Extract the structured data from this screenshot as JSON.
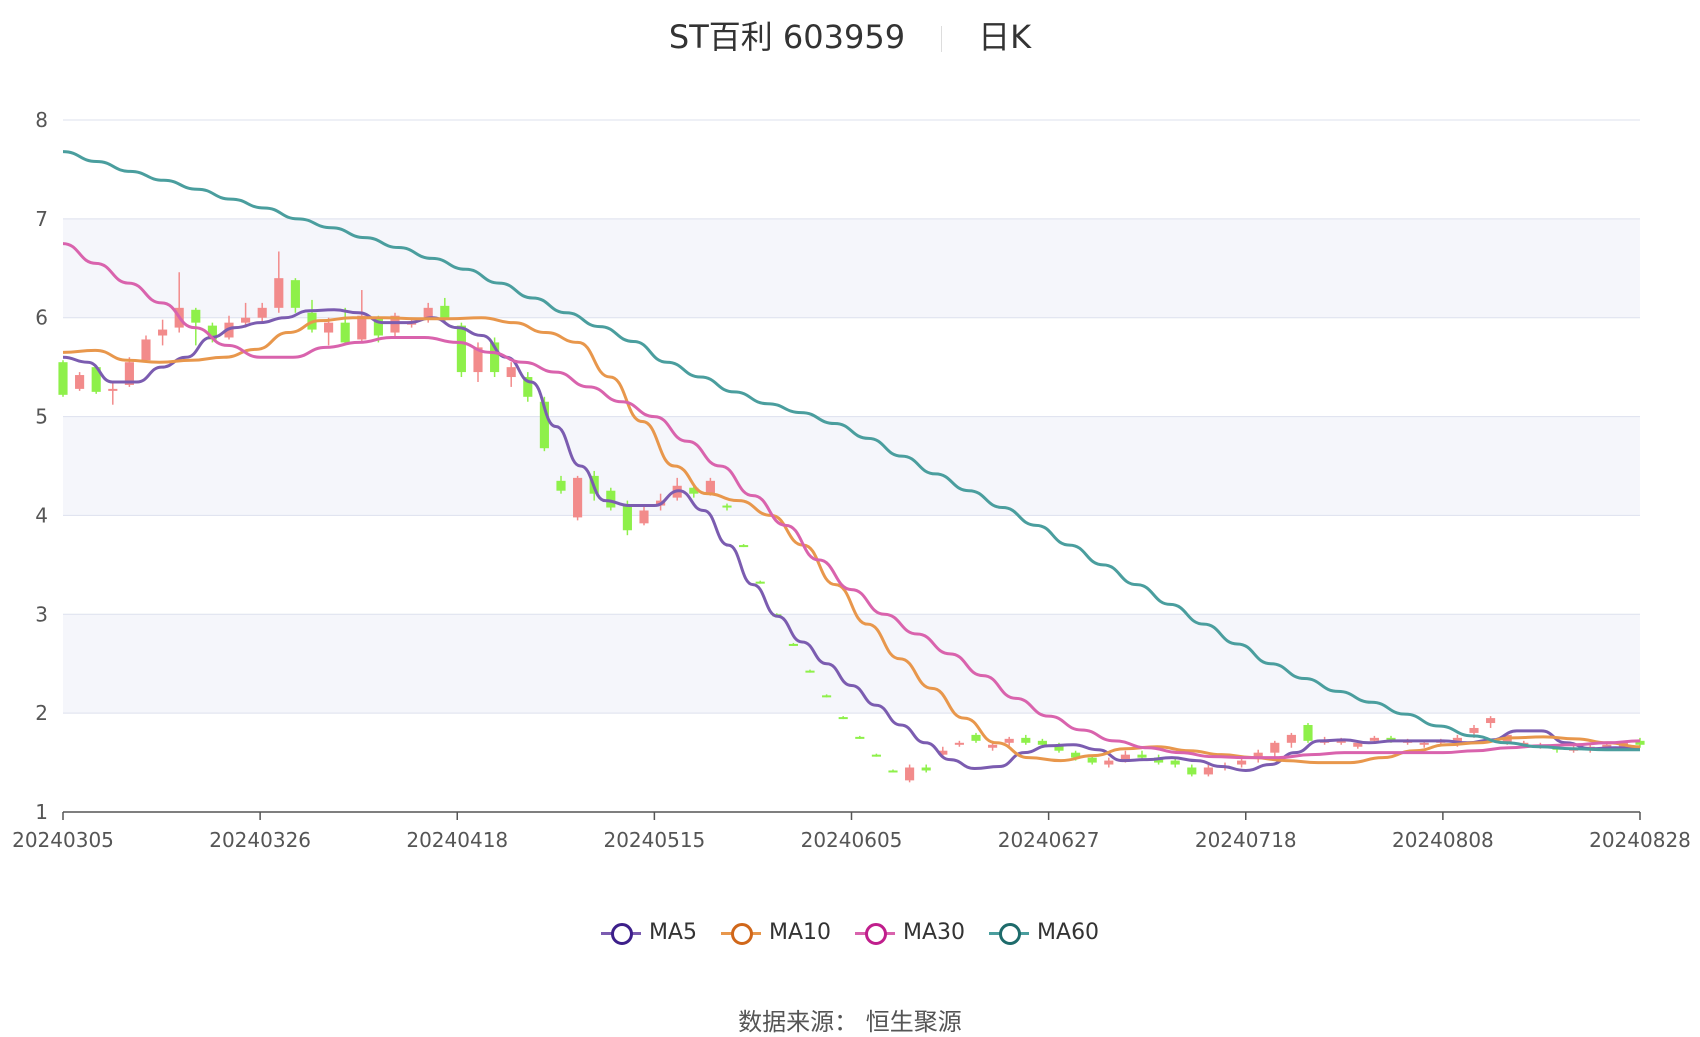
{
  "chart_data": {
    "type": "candlestick",
    "title": "ST百利 603959",
    "period_label": "日K",
    "ylim": [
      1,
      8
    ],
    "yticks": [
      "1",
      "2",
      "3",
      "4",
      "5",
      "6",
      "7",
      "8"
    ],
    "xticks": [
      "20240305",
      "20240326",
      "20240418",
      "20240515",
      "20240605",
      "20240627",
      "20240718",
      "20240808",
      "20240828"
    ],
    "grid": true,
    "legend_position": "bottom",
    "colors": {
      "up": "#f28b8b",
      "down": "#8ef04a",
      "band": "#f5f6fb",
      "grid": "#dde1ee"
    },
    "series": [
      {
        "name": "MA5",
        "color": "#7b5cb0",
        "marker_color": "#3d1f8a",
        "values": [
          5.6,
          5.55,
          5.35,
          5.35,
          5.5,
          5.6,
          5.8,
          5.9,
          5.95,
          6.0,
          6.07,
          6.08,
          6.05,
          5.95,
          5.95,
          6.0,
          5.9,
          5.82,
          5.6,
          5.35,
          4.9,
          4.5,
          4.15,
          4.1,
          4.1,
          4.25,
          4.05,
          3.7,
          3.3,
          2.98,
          2.72,
          2.5,
          2.28,
          2.08,
          1.88,
          1.7,
          1.53,
          1.44,
          1.46,
          1.6,
          1.67,
          1.68,
          1.63,
          1.52,
          1.53,
          1.55,
          1.52,
          1.46,
          1.42,
          1.48,
          1.6,
          1.72,
          1.73,
          1.7,
          1.72,
          1.72,
          1.72,
          1.7,
          1.73,
          1.82,
          1.82,
          1.7,
          1.64,
          1.65,
          1.64
        ]
      },
      {
        "name": "MA10",
        "color": "#e8974c",
        "marker_color": "#d0671a",
        "values": [
          5.65,
          5.67,
          5.57,
          5.55,
          5.57,
          5.6,
          5.68,
          5.85,
          5.97,
          6.0,
          6.0,
          5.99,
          5.99,
          6.0,
          5.95,
          5.85,
          5.75,
          5.4,
          4.95,
          4.5,
          4.22,
          4.15,
          4.0,
          3.7,
          3.3,
          2.9,
          2.55,
          2.25,
          1.95,
          1.7,
          1.55,
          1.52,
          1.57,
          1.64,
          1.66,
          1.62,
          1.58,
          1.55,
          1.52,
          1.5,
          1.5,
          1.55,
          1.62,
          1.68,
          1.7,
          1.75,
          1.76,
          1.74,
          1.7,
          1.66
        ]
      },
      {
        "name": "MA30",
        "color": "#d963ad",
        "marker_color": "#c01e8c",
        "values": [
          6.75,
          6.55,
          6.35,
          6.15,
          5.9,
          5.72,
          5.6,
          5.6,
          5.7,
          5.75,
          5.8,
          5.8,
          5.75,
          5.65,
          5.55,
          5.45,
          5.3,
          5.15,
          5.0,
          4.75,
          4.5,
          4.2,
          3.9,
          3.55,
          3.25,
          3.0,
          2.8,
          2.6,
          2.38,
          2.15,
          1.97,
          1.83,
          1.72,
          1.65,
          1.6,
          1.56,
          1.55,
          1.55,
          1.58,
          1.6,
          1.6,
          1.6,
          1.6,
          1.62,
          1.65,
          1.67,
          1.68,
          1.7,
          1.72
        ]
      },
      {
        "name": "MA60",
        "color": "#4a9e9e",
        "marker_color": "#1e6b6b",
        "values": [
          7.68,
          7.58,
          7.48,
          7.39,
          7.3,
          7.2,
          7.11,
          7.0,
          6.91,
          6.81,
          6.71,
          6.6,
          6.49,
          6.35,
          6.2,
          6.05,
          5.91,
          5.76,
          5.55,
          5.4,
          5.25,
          5.13,
          5.04,
          4.93,
          4.78,
          4.6,
          4.42,
          4.25,
          4.08,
          3.9,
          3.7,
          3.5,
          3.3,
          3.1,
          2.9,
          2.7,
          2.5,
          2.35,
          2.22,
          2.11,
          1.99,
          1.87,
          1.77,
          1.7,
          1.66,
          1.64,
          1.63,
          1.63
        ]
      }
    ],
    "candles": [
      [
        5.55,
        5.22,
        5.57,
        5.2
      ],
      [
        5.28,
        5.42,
        5.45,
        5.26
      ],
      [
        5.5,
        5.25,
        5.52,
        5.23
      ],
      [
        5.26,
        5.28,
        5.36,
        5.12
      ],
      [
        5.32,
        5.55,
        5.6,
        5.3
      ],
      [
        5.57,
        5.78,
        5.82,
        5.55
      ],
      [
        5.82,
        5.88,
        5.98,
        5.72
      ],
      [
        5.9,
        6.1,
        6.46,
        5.85
      ],
      [
        6.08,
        5.95,
        6.1,
        5.72
      ],
      [
        5.92,
        5.78,
        5.95,
        5.75
      ],
      [
        5.8,
        5.95,
        6.02,
        5.78
      ],
      [
        5.95,
        6.0,
        6.15,
        5.9
      ],
      [
        6.0,
        6.1,
        6.15,
        5.95
      ],
      [
        6.1,
        6.4,
        6.67,
        6.05
      ],
      [
        6.38,
        6.1,
        6.4,
        6.05
      ],
      [
        6.05,
        5.88,
        6.18,
        5.85
      ],
      [
        5.85,
        5.95,
        6.0,
        5.72
      ],
      [
        5.95,
        5.75,
        6.1,
        5.72
      ],
      [
        5.78,
        6.02,
        6.28,
        5.75
      ],
      [
        6.0,
        5.82,
        6.02,
        5.75
      ],
      [
        5.85,
        6.02,
        6.05,
        5.8
      ],
      [
        5.95,
        5.95,
        6.0,
        5.9
      ],
      [
        6.0,
        6.1,
        6.15,
        5.95
      ],
      [
        6.12,
        5.98,
        6.2,
        5.95
      ],
      [
        5.92,
        5.45,
        5.95,
        5.4
      ],
      [
        5.45,
        5.7,
        5.75,
        5.35
      ],
      [
        5.75,
        5.45,
        5.8,
        5.4
      ],
      [
        5.4,
        5.5,
        5.55,
        5.3
      ],
      [
        5.4,
        5.2,
        5.45,
        5.15
      ],
      [
        5.15,
        4.68,
        5.2,
        4.65
      ],
      [
        4.35,
        4.25,
        4.4,
        4.22
      ],
      [
        3.98,
        4.38,
        4.4,
        3.95
      ],
      [
        4.4,
        4.22,
        4.45,
        4.15
      ],
      [
        4.25,
        4.08,
        4.28,
        4.05
      ],
      [
        4.1,
        3.85,
        4.15,
        3.8
      ],
      [
        3.92,
        4.05,
        4.1,
        3.9
      ],
      [
        4.1,
        4.15,
        4.22,
        4.05
      ],
      [
        4.18,
        4.3,
        4.38,
        4.15
      ],
      [
        4.28,
        4.22,
        4.32,
        4.18
      ],
      [
        4.22,
        4.35,
        4.38,
        4.2
      ],
      [
        4.1,
        4.08,
        4.12,
        4.05
      ],
      [
        3.7,
        3.69,
        3.71,
        3.68
      ],
      [
        3.33,
        3.32,
        3.34,
        3.31
      ],
      [
        3.0,
        2.99,
        3.01,
        2.98
      ],
      [
        2.7,
        2.69,
        2.71,
        2.68
      ],
      [
        2.43,
        2.42,
        2.44,
        2.41
      ],
      [
        2.18,
        2.17,
        2.19,
        2.16
      ],
      [
        1.96,
        1.95,
        1.97,
        1.94
      ],
      [
        1.76,
        1.75,
        1.77,
        1.74
      ],
      [
        1.58,
        1.57,
        1.59,
        1.56
      ],
      [
        1.42,
        1.41,
        1.43,
        1.4
      ],
      [
        1.32,
        1.45,
        1.48,
        1.3
      ],
      [
        1.45,
        1.42,
        1.48,
        1.4
      ],
      [
        1.58,
        1.62,
        1.66,
        1.55
      ],
      [
        1.68,
        1.7,
        1.72,
        1.66
      ],
      [
        1.78,
        1.72,
        1.8,
        1.7
      ],
      [
        1.65,
        1.68,
        1.72,
        1.62
      ],
      [
        1.7,
        1.74,
        1.76,
        1.67
      ],
      [
        1.75,
        1.7,
        1.78,
        1.68
      ],
      [
        1.72,
        1.68,
        1.74,
        1.65
      ],
      [
        1.68,
        1.62,
        1.7,
        1.6
      ],
      [
        1.6,
        1.55,
        1.62,
        1.52
      ],
      [
        1.55,
        1.5,
        1.58,
        1.48
      ],
      [
        1.48,
        1.52,
        1.55,
        1.45
      ],
      [
        1.52,
        1.58,
        1.62,
        1.5
      ],
      [
        1.58,
        1.55,
        1.62,
        1.53
      ],
      [
        1.55,
        1.5,
        1.58,
        1.48
      ],
      [
        1.52,
        1.48,
        1.55,
        1.45
      ],
      [
        1.45,
        1.38,
        1.48,
        1.36
      ],
      [
        1.38,
        1.45,
        1.48,
        1.36
      ],
      [
        1.45,
        1.47,
        1.5,
        1.42
      ],
      [
        1.48,
        1.52,
        1.55,
        1.45
      ],
      [
        1.55,
        1.6,
        1.63,
        1.5
      ],
      [
        1.6,
        1.7,
        1.72,
        1.55
      ],
      [
        1.7,
        1.78,
        1.8,
        1.65
      ],
      [
        1.88,
        1.72,
        1.9,
        1.7
      ],
      [
        1.7,
        1.72,
        1.76,
        1.68
      ],
      [
        1.7,
        1.72,
        1.75,
        1.68
      ],
      [
        1.66,
        1.7,
        1.72,
        1.64
      ],
      [
        1.72,
        1.75,
        1.77,
        1.7
      ],
      [
        1.75,
        1.73,
        1.77,
        1.7
      ],
      [
        1.7,
        1.72,
        1.74,
        1.68
      ],
      [
        1.68,
        1.7,
        1.72,
        1.65
      ],
      [
        1.7,
        1.72,
        1.74,
        1.68
      ],
      [
        1.7,
        1.75,
        1.78,
        1.66
      ],
      [
        1.8,
        1.85,
        1.88,
        1.75
      ],
      [
        1.9,
        1.95,
        1.97,
        1.85
      ],
      [
        1.7,
        1.78,
        1.8,
        1.68
      ],
      [
        1.68,
        1.7,
        1.72,
        1.65
      ],
      [
        1.66,
        1.68,
        1.7,
        1.64
      ],
      [
        1.65,
        1.63,
        1.67,
        1.6
      ],
      [
        1.62,
        1.65,
        1.68,
        1.6
      ],
      [
        1.63,
        1.66,
        1.68,
        1.6
      ],
      [
        1.65,
        1.68,
        1.7,
        1.63
      ],
      [
        1.66,
        1.7,
        1.72,
        1.64
      ],
      [
        1.72,
        1.68,
        1.75,
        1.65
      ]
    ]
  },
  "source_label": "数据来源：  恒生聚源"
}
